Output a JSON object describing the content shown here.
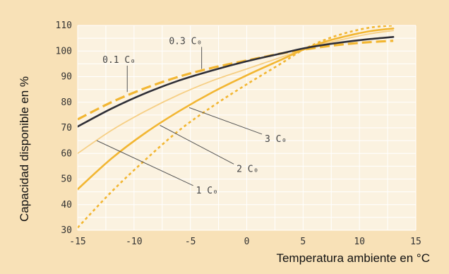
{
  "chart_data": {
    "type": "line",
    "title": "",
    "xlabel": "Temperatura ambiente en °C",
    "ylabel": "Capacidad disponible en %",
    "xlim": [
      -15,
      15
    ],
    "ylim": [
      30,
      110
    ],
    "xticks": [
      "-15",
      "-10",
      "-5",
      "0",
      "5",
      "10",
      "15"
    ],
    "yticks": [
      "30",
      "40",
      "50",
      "60",
      "70",
      "80",
      "90",
      "100",
      "110"
    ],
    "grid": true,
    "legend": "none",
    "colors": {
      "background": "#f8e1b7",
      "plot_background": "#fbf2e0",
      "grid": "#ffffff",
      "dark": "#2e2e36",
      "gold": "#f2b632",
      "light_gold": "#f7d27e",
      "pale_gold": "#f6cf85"
    },
    "series": [
      {
        "name": "0.1 C₀",
        "style": "dashed",
        "color_key": "gold",
        "x": [
          -15,
          -12,
          -9,
          -6,
          -3,
          0,
          3,
          5,
          7,
          9,
          11,
          13
        ],
        "y": [
          73.3,
          80,
          85.5,
          90,
          93.5,
          96.3,
          99,
          100.5,
          101.8,
          102.8,
          103.5,
          104
        ]
      },
      {
        "name": "0.3 C₀",
        "style": "solid",
        "color_key": "dark",
        "x": [
          -15,
          -12,
          -9,
          -6,
          -3,
          0,
          3,
          5,
          7,
          9,
          11,
          13
        ],
        "y": [
          70.5,
          77.5,
          83.5,
          88.5,
          92.5,
          96,
          99,
          101,
          102.5,
          103.7,
          104.7,
          105.5
        ]
      },
      {
        "name": "1 C₀",
        "style": "solid",
        "color_key": "pale_gold",
        "x": [
          -15,
          -12,
          -9,
          -6,
          -3,
          0,
          3,
          5,
          7,
          9,
          11,
          13
        ],
        "y": [
          60,
          69,
          76.5,
          83,
          88.5,
          93,
          97.5,
          100.5,
          103,
          105,
          106.8,
          108
        ]
      },
      {
        "name": "2 C₀",
        "style": "solid",
        "color_key": "gold",
        "x": [
          -15,
          -12,
          -9,
          -6,
          -3,
          0,
          3,
          5,
          7,
          9,
          11,
          13
        ],
        "y": [
          46,
          58,
          68,
          76.5,
          84,
          90.5,
          96.5,
          100.5,
          103.7,
          106,
          107.8,
          108.8
        ]
      },
      {
        "name": "3 C₀",
        "style": "dotted",
        "color_key": "gold",
        "x": [
          -15,
          -12,
          -9,
          -6,
          -3,
          0,
          3,
          5,
          7,
          9,
          11,
          13
        ],
        "y": [
          31,
          45,
          57.5,
          69,
          78.5,
          87,
          95,
          100.5,
          104.5,
          107.3,
          109.2,
          110
        ]
      }
    ],
    "annotations": [
      {
        "text": "0.3 C₀",
        "x": -6.9,
        "y": 102.7,
        "series_index": 1,
        "target": [
          -4,
          93
        ]
      },
      {
        "text": "0.1 C₀",
        "x": -12.8,
        "y": 95.4,
        "series_index": 0,
        "target": [
          -10.6,
          84
        ]
      },
      {
        "text": "3 C₀",
        "x": 1.6,
        "y": 64.5,
        "series_index": 4,
        "target": [
          -5.1,
          77.9
        ]
      },
      {
        "text": "2 C₀",
        "x": -0.9,
        "y": 52.8,
        "series_index": 3,
        "target": [
          -7.7,
          71
        ]
      },
      {
        "text": "1 C₀",
        "x": -4.5,
        "y": 44.4,
        "series_index": 2,
        "target": [
          -13.3,
          65
        ]
      }
    ]
  }
}
